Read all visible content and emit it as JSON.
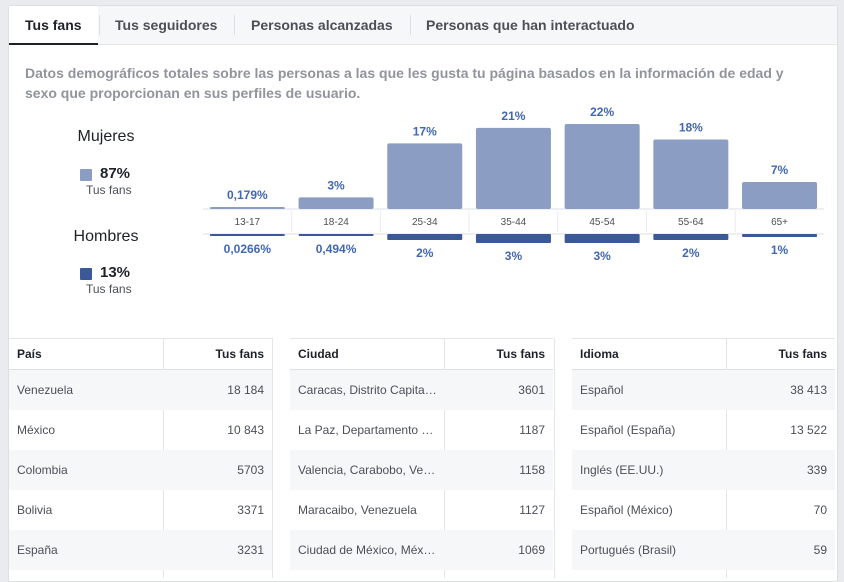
{
  "tabs": [
    {
      "label": "Tus fans",
      "active": true
    },
    {
      "label": "Tus seguidores",
      "active": false
    },
    {
      "label": "Personas alcanzadas",
      "active": false
    },
    {
      "label": "Personas que han interactuado",
      "active": false
    }
  ],
  "description": "Datos demográficos totales sobre las personas a las que les gusta tu página basados en la información de edad y sexo que proporcionan en sus perfiles de usuario.",
  "gender": {
    "women": {
      "title": "Mujeres",
      "percent": "87%",
      "sub": "Tus fans",
      "color": "#8b9dc3"
    },
    "men": {
      "title": "Hombres",
      "percent": "13%",
      "sub": "Tus fans",
      "color": "#3b5998"
    }
  },
  "chart_data": {
    "type": "bar",
    "title": "",
    "categories": [
      "13-17",
      "18-24",
      "25-34",
      "35-44",
      "45-54",
      "55-64",
      "65+"
    ],
    "series": [
      {
        "name": "Mujeres",
        "values": [
          0.179,
          3,
          17,
          21,
          22,
          18,
          7
        ],
        "labels": [
          "0,179%",
          "3%",
          "17%",
          "21%",
          "22%",
          "18%",
          "7%"
        ],
        "color": "#8b9dc3"
      },
      {
        "name": "Hombres",
        "values": [
          0.0266,
          0.494,
          2,
          3,
          3,
          2,
          1
        ],
        "labels": [
          "0,0266%",
          "0,494%",
          "2%",
          "3%",
          "3%",
          "2%",
          "1%"
        ],
        "color": "#3b5998"
      }
    ]
  },
  "tables": [
    {
      "col1": "País",
      "col2": "Tus fans",
      "rows": [
        [
          "Venezuela",
          "18 184"
        ],
        [
          "México",
          "10 843"
        ],
        [
          "Colombia",
          "5703"
        ],
        [
          "Bolivia",
          "3371"
        ],
        [
          "España",
          "3231"
        ]
      ]
    },
    {
      "col1": "Ciudad",
      "col2": "Tus fans",
      "rows": [
        [
          "Caracas, Distrito Capital, Venezuela",
          "3601"
        ],
        [
          "La Paz, Departamento de La Paz, Bolivia",
          "1187"
        ],
        [
          "Valencia, Carabobo, Venezuela",
          "1158"
        ],
        [
          "Maracaibo, Venezuela",
          "1127"
        ],
        [
          "Ciudad de México, México",
          "1069"
        ]
      ]
    },
    {
      "col1": "Idioma",
      "col2": "Tus fans",
      "rows": [
        [
          "Español",
          "38 413"
        ],
        [
          "Español (España)",
          "13 522"
        ],
        [
          "Inglés (EE.UU.)",
          "339"
        ],
        [
          "Español (México)",
          "70"
        ],
        [
          "Portugués (Brasil)",
          "59"
        ]
      ]
    }
  ]
}
